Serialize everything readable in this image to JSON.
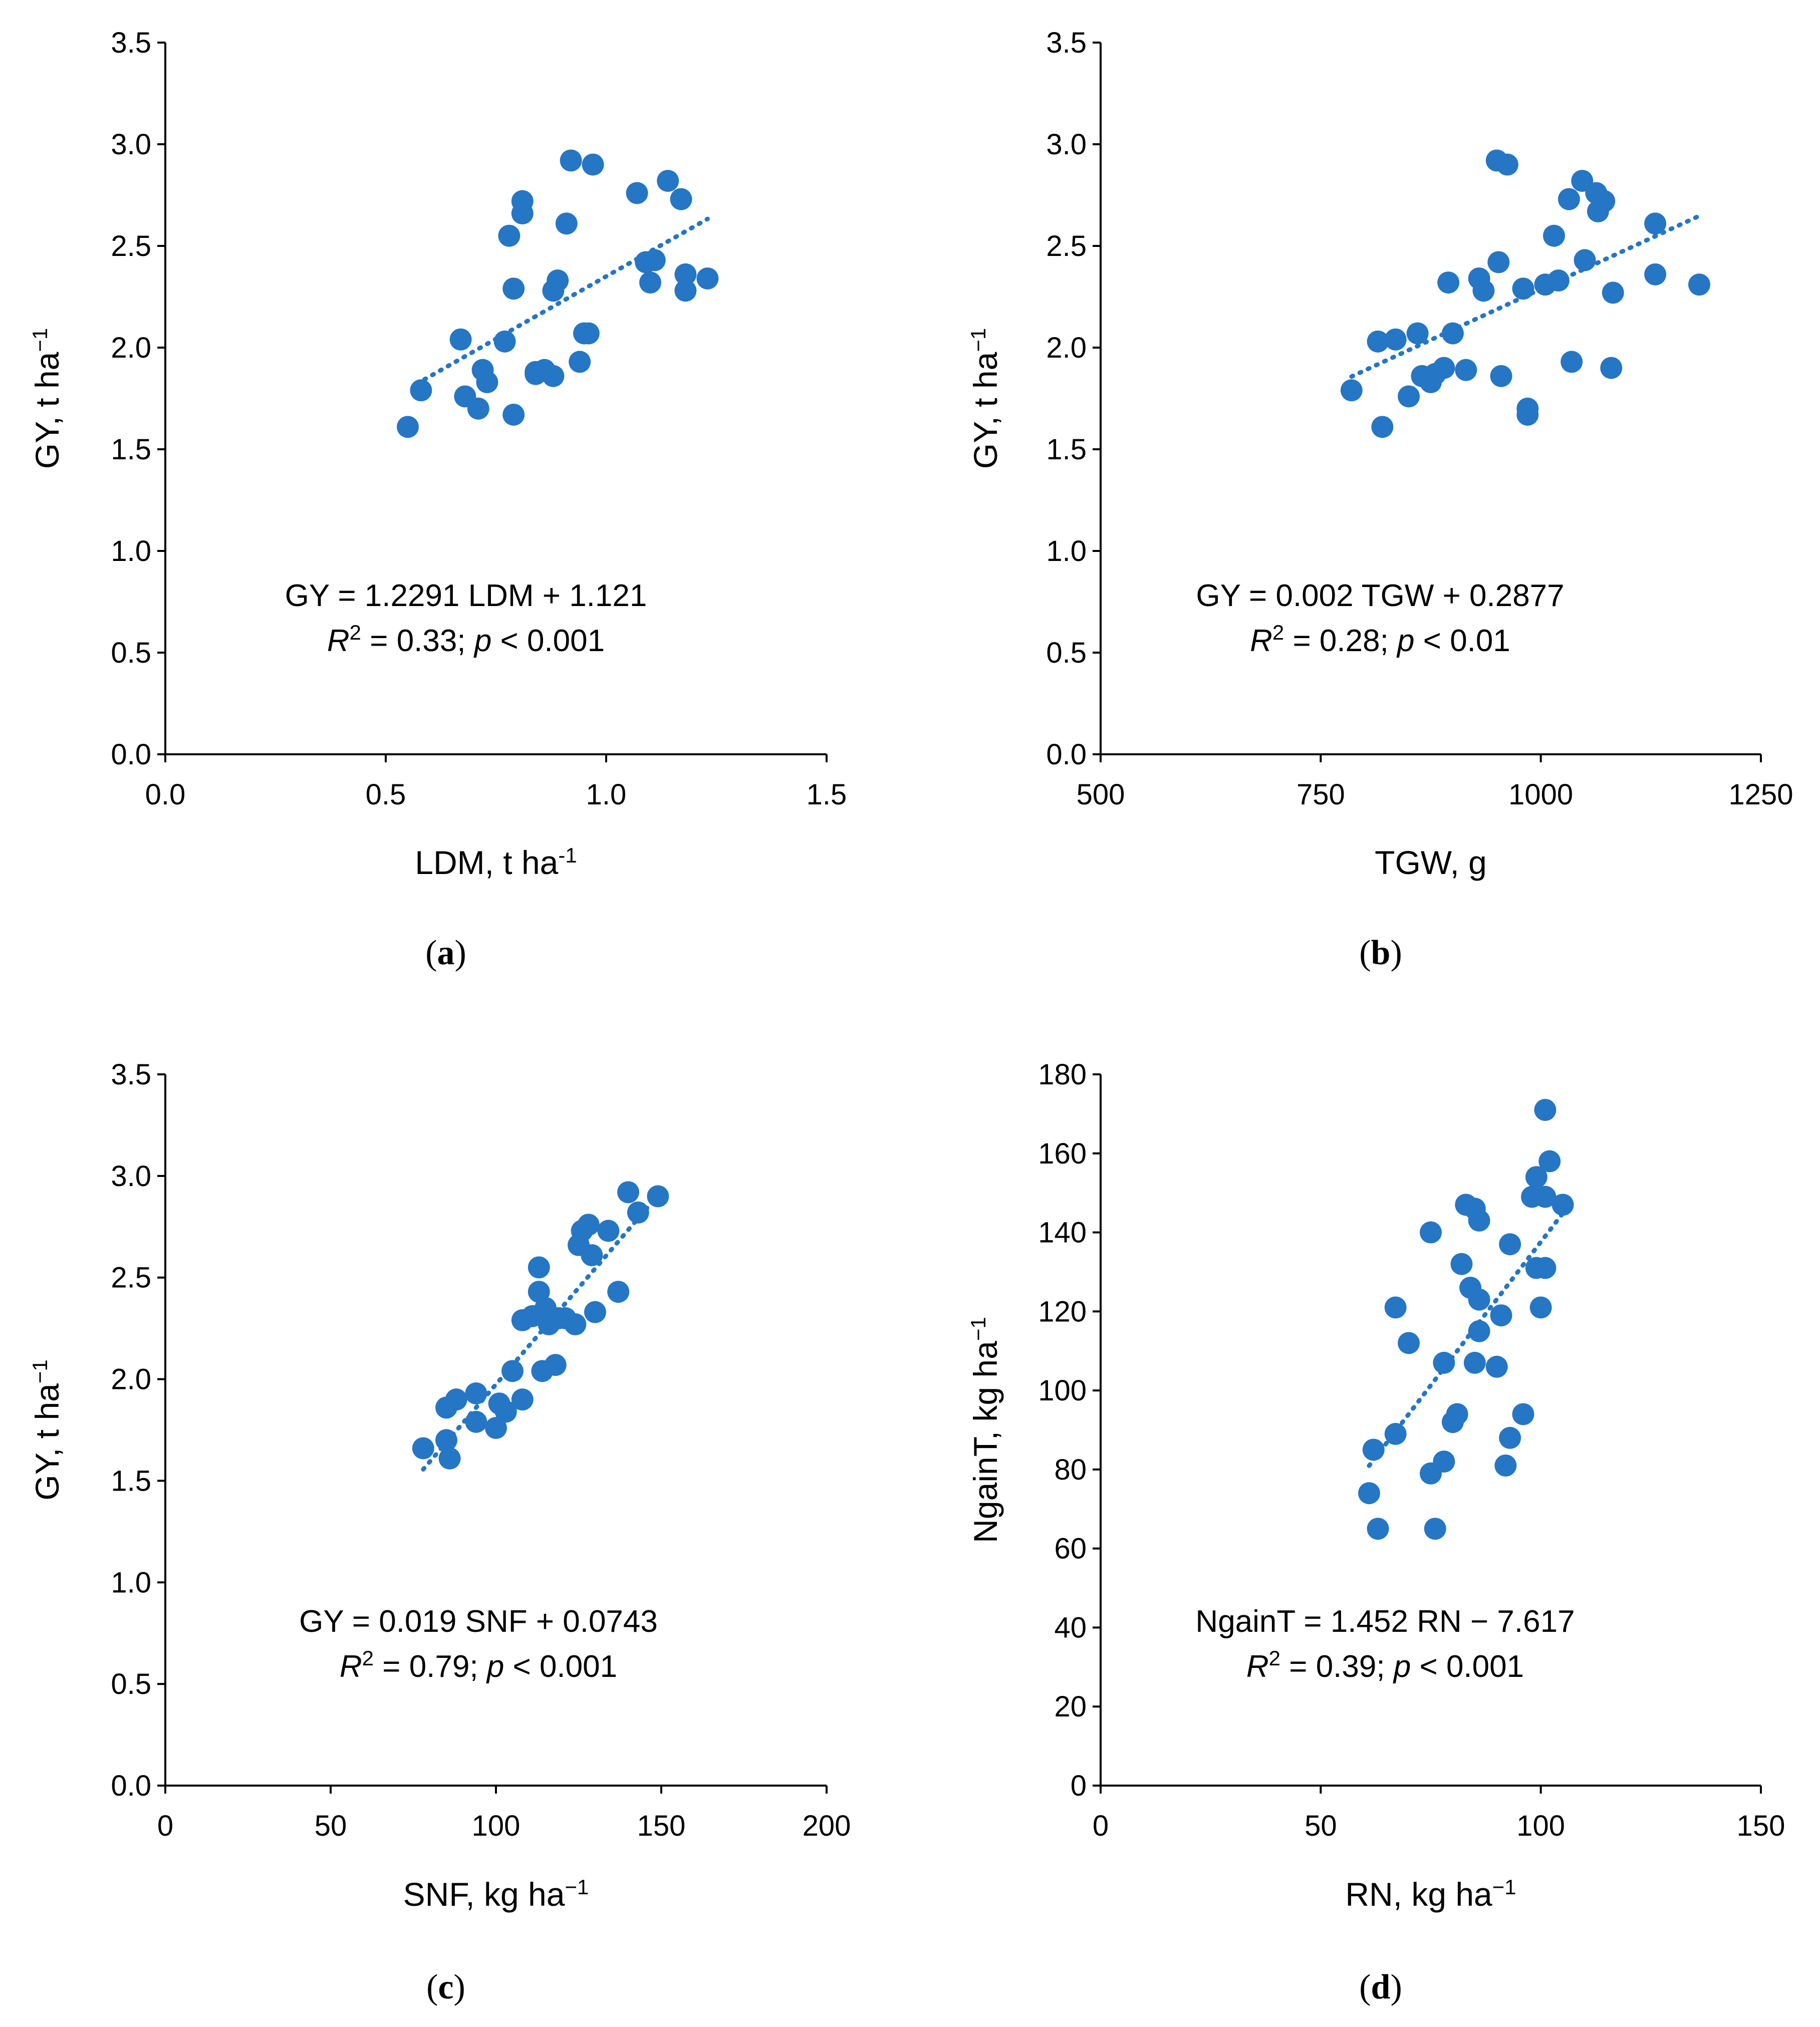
{
  "figure": {
    "panels": [
      {
        "id": "a",
        "panel_label": "a",
        "equation": "GY = 1.2291 LDM + 1.121",
        "r2_prefix": "R",
        "r2_rest": " = 0.33; ",
        "p_letter": "p",
        "p_rest": " < 0.001"
      },
      {
        "id": "b",
        "panel_label": "b",
        "equation": "GY = 0.002 TGW + 0.2877",
        "r2_prefix": "R",
        "r2_rest": " = 0.28; ",
        "p_letter": "p",
        "p_rest": " < 0.01"
      },
      {
        "id": "c",
        "panel_label": "c",
        "equation": "GY = 0.019 SNF + 0.0743",
        "r2_prefix": "R",
        "r2_rest": " = 0.79; ",
        "p_letter": "p",
        "p_rest": " < 0.001"
      },
      {
        "id": "d",
        "panel_label": "d",
        "equation": "NgainT = 1.452 RN − 7.617",
        "r2_prefix": "R",
        "r2_rest": " = 0.39; ",
        "p_letter": "p",
        "p_rest": " < 0.001"
      }
    ]
  },
  "chart_data": [
    {
      "type": "scatter",
      "id": "a",
      "xlabel": "LDM, t ha",
      "xlabel_sup": "-1",
      "ylabel": "GY, t ha",
      "ylabel_sup": "−1",
      "xlim": [
        0,
        1.5
      ],
      "ylim": [
        0,
        3.5
      ],
      "xticks": [
        "0.0",
        "0.5",
        "1.0",
        "1.5"
      ],
      "xtick_values": [
        0,
        0.5,
        1.0,
        1.5
      ],
      "yticks": [
        "0.0",
        "0.5",
        "1.0",
        "1.5",
        "2.0",
        "2.5",
        "3.0",
        "3.5"
      ],
      "ytick_values": [
        0,
        0.5,
        1.0,
        1.5,
        2.0,
        2.5,
        3.0,
        3.5
      ],
      "trend": {
        "slope": 1.2291,
        "intercept": 1.121,
        "x_range": [
          0.57,
          1.23
        ]
      },
      "points": [
        [
          0.55,
          1.61
        ],
        [
          0.58,
          1.79
        ],
        [
          0.67,
          2.04
        ],
        [
          0.68,
          1.76
        ],
        [
          0.71,
          1.7
        ],
        [
          0.72,
          1.89
        ],
        [
          0.73,
          1.83
        ],
        [
          0.77,
          2.03
        ],
        [
          0.78,
          2.55
        ],
        [
          0.79,
          2.29
        ],
        [
          0.79,
          1.67
        ],
        [
          0.81,
          2.72
        ],
        [
          0.81,
          2.66
        ],
        [
          0.84,
          1.87
        ],
        [
          0.84,
          1.88
        ],
        [
          0.86,
          1.89
        ],
        [
          0.88,
          1.86
        ],
        [
          0.88,
          2.28
        ],
        [
          0.89,
          2.33
        ],
        [
          0.91,
          2.61
        ],
        [
          0.92,
          2.92
        ],
        [
          0.94,
          1.93
        ],
        [
          0.96,
          2.07
        ],
        [
          0.95,
          2.07
        ],
        [
          0.97,
          2.9
        ],
        [
          1.07,
          2.76
        ],
        [
          1.09,
          2.42
        ],
        [
          1.1,
          2.32
        ],
        [
          1.11,
          2.43
        ],
        [
          1.14,
          2.82
        ],
        [
          1.17,
          2.73
        ],
        [
          1.18,
          2.36
        ],
        [
          1.18,
          2.28
        ],
        [
          1.23,
          2.34
        ]
      ]
    },
    {
      "type": "scatter",
      "id": "b",
      "xlabel": "TGW, g",
      "xlabel_sup": "",
      "ylabel": "GY, t ha",
      "ylabel_sup": "−1",
      "xlim": [
        500,
        1250
      ],
      "ylim": [
        0,
        3.5
      ],
      "xticks": [
        "500",
        "750",
        "1000",
        "1250"
      ],
      "xtick_values": [
        500,
        750,
        1000,
        1250
      ],
      "yticks": [
        "0.0",
        "0.5",
        "1.0",
        "1.5",
        "2.0",
        "2.5",
        "3.0",
        "3.5"
      ],
      "ytick_values": [
        0,
        0.5,
        1.0,
        1.5,
        2.0,
        2.5,
        3.0,
        3.5
      ],
      "trend": {
        "slope": 0.002,
        "intercept": 0.2877,
        "x_range": [
          785,
          1180
        ]
      },
      "points": [
        [
          785,
          1.79
        ],
        [
          815,
          2.03
        ],
        [
          820,
          1.61
        ],
        [
          835,
          2.04
        ],
        [
          850,
          1.76
        ],
        [
          860,
          2.07
        ],
        [
          865,
          1.86
        ],
        [
          875,
          1.83
        ],
        [
          880,
          1.87
        ],
        [
          890,
          1.9
        ],
        [
          895,
          2.32
        ],
        [
          900,
          2.07
        ],
        [
          915,
          1.89
        ],
        [
          930,
          2.34
        ],
        [
          935,
          2.28
        ],
        [
          950,
          2.92
        ],
        [
          952,
          2.42
        ],
        [
          955,
          1.86
        ],
        [
          962,
          2.9
        ],
        [
          980,
          2.29
        ],
        [
          985,
          1.67
        ],
        [
          985,
          1.7
        ],
        [
          1005,
          2.31
        ],
        [
          1015,
          2.55
        ],
        [
          1020,
          2.33
        ],
        [
          1032,
          2.73
        ],
        [
          1035,
          1.93
        ],
        [
          1047,
          2.82
        ],
        [
          1050,
          2.43
        ],
        [
          1063,
          2.76
        ],
        [
          1065,
          2.67
        ],
        [
          1072,
          2.72
        ],
        [
          1080,
          1.9
        ],
        [
          1082,
          2.27
        ],
        [
          1130,
          2.61
        ],
        [
          1130,
          2.36
        ],
        [
          1180,
          2.31
        ]
      ]
    },
    {
      "type": "scatter",
      "id": "c",
      "xlabel": "SNF, kg ha",
      "xlabel_sup": "−1",
      "ylabel": "GY, t ha",
      "ylabel_sup": "−1",
      "xlim": [
        0,
        200
      ],
      "ylim": [
        0,
        3.5
      ],
      "xticks": [
        "0",
        "50",
        "100",
        "150",
        "200"
      ],
      "xtick_values": [
        0,
        50,
        100,
        150,
        200
      ],
      "yticks": [
        "0.0",
        "0.5",
        "1.0",
        "1.5",
        "2.0",
        "2.5",
        "3.0",
        "3.5"
      ],
      "ytick_values": [
        0,
        0.5,
        1.0,
        1.5,
        2.0,
        2.5,
        3.0,
        3.5
      ],
      "trend": {
        "slope": 0.019,
        "intercept": 0.0743,
        "x_range": [
          78,
          149
        ]
      },
      "points": [
        [
          78,
          1.66
        ],
        [
          85,
          1.7
        ],
        [
          85,
          1.86
        ],
        [
          86,
          1.61
        ],
        [
          88,
          1.9
        ],
        [
          94,
          1.79
        ],
        [
          94,
          1.93
        ],
        [
          100,
          1.76
        ],
        [
          101,
          1.88
        ],
        [
          103,
          1.84
        ],
        [
          105,
          2.04
        ],
        [
          108,
          1.9
        ],
        [
          108,
          2.29
        ],
        [
          111,
          2.31
        ],
        [
          113,
          2.55
        ],
        [
          113,
          2.43
        ],
        [
          114,
          2.04
        ],
        [
          115,
          2.35
        ],
        [
          116,
          2.27
        ],
        [
          118,
          2.07
        ],
        [
          119,
          2.3
        ],
        [
          121,
          2.3
        ],
        [
          124,
          2.27
        ],
        [
          125,
          2.66
        ],
        [
          126,
          2.73
        ],
        [
          128,
          2.76
        ],
        [
          129,
          2.61
        ],
        [
          130,
          2.33
        ],
        [
          134,
          2.73
        ],
        [
          137,
          2.43
        ],
        [
          140,
          2.92
        ],
        [
          143,
          2.82
        ],
        [
          149,
          2.9
        ]
      ]
    },
    {
      "type": "scatter",
      "id": "d",
      "xlabel": "RN, kg ha",
      "xlabel_sup": "−1",
      "ylabel": "NgainT, kg ha",
      "ylabel_sup": "−1",
      "xlim": [
        0,
        150
      ],
      "ylim": [
        0,
        180
      ],
      "xticks": [
        "0",
        "50",
        "100",
        "150"
      ],
      "xtick_values": [
        0,
        50,
        100,
        150
      ],
      "yticks": [
        "0",
        "20",
        "40",
        "60",
        "80",
        "100",
        "120",
        "140",
        "160",
        "180"
      ],
      "ytick_values": [
        0,
        20,
        40,
        60,
        80,
        100,
        120,
        140,
        160,
        180
      ],
      "trend": {
        "slope": 1.452,
        "intercept": -7.617,
        "x_range": [
          61,
          105
        ]
      },
      "points": [
        [
          61,
          74
        ],
        [
          62,
          85
        ],
        [
          63,
          65
        ],
        [
          67,
          89
        ],
        [
          67,
          121
        ],
        [
          70,
          112
        ],
        [
          75,
          79
        ],
        [
          75,
          140
        ],
        [
          76,
          65
        ],
        [
          78,
          82
        ],
        [
          78,
          107
        ],
        [
          80,
          92
        ],
        [
          81,
          94
        ],
        [
          82,
          132
        ],
        [
          83,
          147
        ],
        [
          84,
          126
        ],
        [
          85,
          146
        ],
        [
          85,
          107
        ],
        [
          86,
          143
        ],
        [
          86,
          123
        ],
        [
          86,
          115
        ],
        [
          90,
          106
        ],
        [
          91,
          119
        ],
        [
          92,
          81
        ],
        [
          93,
          88
        ],
        [
          93,
          137
        ],
        [
          96,
          94
        ],
        [
          98,
          149
        ],
        [
          99,
          154
        ],
        [
          99,
          131
        ],
        [
          100,
          121
        ],
        [
          101,
          131
        ],
        [
          101,
          149
        ],
        [
          101,
          171
        ],
        [
          102,
          158
        ],
        [
          105,
          147
        ]
      ]
    }
  ]
}
